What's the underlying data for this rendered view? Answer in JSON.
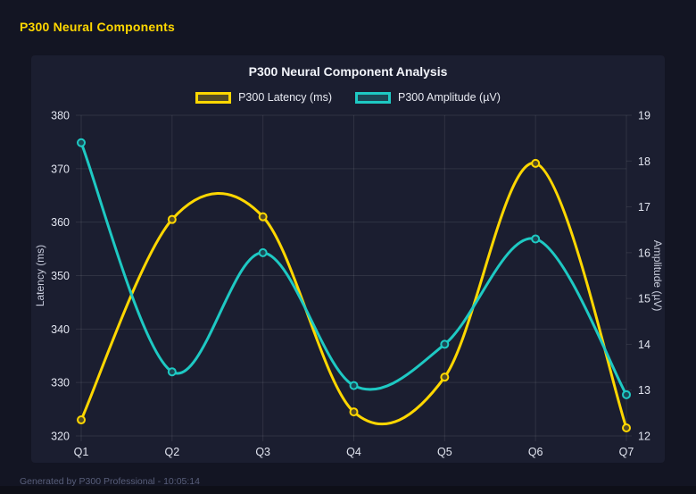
{
  "window": {
    "header_title": "P300 Neural Components",
    "footer_text": "Generated by P300 Professional - 10:05:14"
  },
  "colors": {
    "page_background": "#131523",
    "card_background": "#1b1e30",
    "latency_series": "#ffd700",
    "amplitude_series": "#1ec9c3",
    "gridline": "rgba(255,255,255,0.09)",
    "tick_label": "#e2e5f0",
    "axis_title": "#c9cddd",
    "header_accent": "#ffd700"
  },
  "chart_data": {
    "type": "line",
    "title": "P300 Neural Component Analysis",
    "categories": [
      "Q1",
      "Q2",
      "Q3",
      "Q4",
      "Q5",
      "Q6",
      "Q7"
    ],
    "series": [
      {
        "name": "P300 Latency (ms)",
        "axis": "left",
        "color": "#ffd700",
        "values": [
          323,
          360.5,
          361,
          324.5,
          331,
          371,
          321.5
        ]
      },
      {
        "name": "P300 Amplitude (µV)",
        "axis": "right",
        "color": "#1ec9c3",
        "values": [
          18.4,
          13.4,
          16.0,
          13.1,
          14.0,
          16.3,
          12.9
        ]
      }
    ],
    "left_axis": {
      "label": "Latency (ms)",
      "min": 320,
      "max": 380,
      "ticks": [
        320,
        330,
        340,
        350,
        360,
        370,
        380
      ]
    },
    "right_axis": {
      "label": "Amplitude (µV)",
      "min": 12,
      "max": 19,
      "ticks": [
        12,
        13,
        14,
        15,
        16,
        17,
        18,
        19
      ]
    },
    "grid": true,
    "smooth": true,
    "legend_position": "top"
  }
}
